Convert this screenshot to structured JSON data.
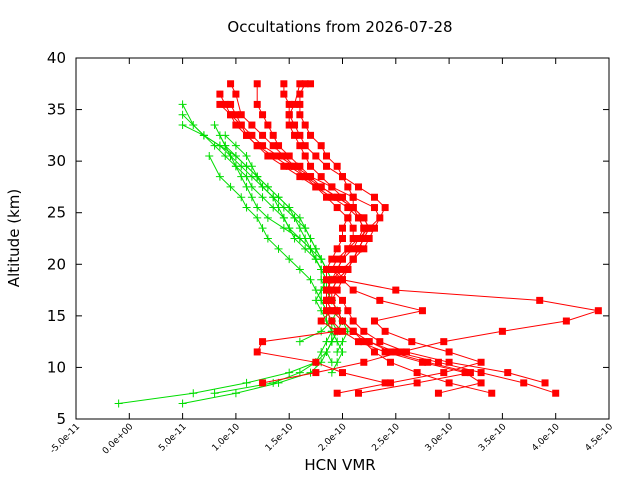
{
  "chart_data": {
    "type": "line",
    "title": "Occultations from 2026-07-28",
    "xlabel": "HCN VMR",
    "ylabel": "Altitude (km)",
    "xlim": [
      -5e-11,
      4.5e-10
    ],
    "ylim": [
      5,
      40
    ],
    "x_ticks": [
      -5e-11,
      0,
      5e-11,
      1e-10,
      1.5e-10,
      2e-10,
      2.5e-10,
      3e-10,
      3.5e-10,
      4e-10,
      4.5e-10
    ],
    "x_tick_labels": [
      "-5.0e-11",
      "0.0e+00",
      "5.0e-11",
      "1.0e-10",
      "1.5e-10",
      "2.0e-10",
      "2.5e-10",
      "3.0e-10",
      "3.5e-10",
      "4.0e-10",
      "4.5e-10"
    ],
    "y_ticks": [
      5,
      10,
      15,
      20,
      25,
      30,
      35,
      40
    ],
    "y_tick_labels": [
      "5",
      "10",
      "15",
      "20",
      "25",
      "30",
      "35",
      "40"
    ],
    "grid": false,
    "legend": "none",
    "colors": {
      "red_series": "#ff0000",
      "green_series": "#00dd00",
      "axis": "#000000"
    },
    "series": [
      {
        "marker": "square",
        "color": "#ff0000",
        "x": [
          3.9e-10,
          3.55e-10,
          3e-10,
          2.6e-10,
          2.35e-10,
          2.2e-10,
          2.1e-10,
          2.05e-10,
          2e-10,
          1.9e-10,
          1.85e-10,
          1.85e-10,
          1.9e-10,
          1.95e-10,
          2e-10,
          2e-10,
          2.05e-10,
          2.1e-10,
          2.1e-10,
          2.05e-10,
          2e-10,
          1.95e-10,
          1.85e-10,
          1.8e-10,
          1.7e-10,
          1.65e-10,
          1.6e-10,
          1.6e-10,
          1.6e-10,
          1.65e-10,
          1.7e-10
        ],
        "y": [
          8.5,
          9.5,
          10.5,
          11.5,
          12.5,
          13.5,
          14.5,
          15.5,
          16.5,
          17.5,
          18.5,
          19.5,
          20.5,
          21.5,
          22.5,
          23.5,
          24.5,
          25.5,
          26.5,
          27.5,
          28.5,
          29.5,
          30.5,
          31.5,
          32.5,
          33.5,
          34.5,
          35.5,
          36.5,
          37.5,
          37.5
        ]
      },
      {
        "marker": "square",
        "color": "#ff0000",
        "x": [
          4e-10,
          3.7e-10,
          3.3e-10,
          2.9e-10,
          2.5e-10,
          2.25e-10,
          2.1e-10,
          2e-10,
          1.95e-10,
          1.9e-10,
          1.95e-10,
          2e-10,
          2.05e-10,
          2.1e-10,
          2.15e-10,
          2.2e-10,
          2.2e-10,
          2.15e-10,
          2.1e-10,
          2e-10,
          1.9e-10,
          1.8e-10,
          1.7e-10,
          1.65e-10,
          1.6e-10,
          1.55e-10,
          1.5e-10,
          1.5e-10,
          1.55e-10,
          1.6e-10
        ],
        "y": [
          7.5,
          8.5,
          9.5,
          10.5,
          11.5,
          12.5,
          13.5,
          14.5,
          15.5,
          16.5,
          17.5,
          18.5,
          19.5,
          20.5,
          21.5,
          22.5,
          23.5,
          24.5,
          25.5,
          26.5,
          27.5,
          28.5,
          29.5,
          30.5,
          31.5,
          32.5,
          33.5,
          34.5,
          35.5,
          37.5
        ]
      },
      {
        "marker": "square",
        "color": "#ff0000",
        "x": [
          3.4e-10,
          3e-10,
          2.7e-10,
          2.45e-10,
          2.3e-10,
          2.2e-10,
          2.1e-10,
          2e-10,
          1.95e-10,
          1.9e-10,
          1.9e-10,
          1.95e-10,
          2.05e-10,
          2.1e-10,
          2.2e-10,
          2.25e-10,
          2.3e-10,
          2.4e-10,
          2.3e-10,
          2.15e-10,
          2e-10,
          1.85e-10,
          1.75e-10,
          1.65e-10,
          1.6e-10,
          1.55e-10,
          1.5e-10,
          1.5e-10,
          1.45e-10,
          1.45e-10
        ],
        "y": [
          7.5,
          8.5,
          9.5,
          10.5,
          11.5,
          12.5,
          13.5,
          14.5,
          15.5,
          16.5,
          17.5,
          18.5,
          19.5,
          20.5,
          21.5,
          22.5,
          23.5,
          25.5,
          26.5,
          27.5,
          28.5,
          29.5,
          30.5,
          31.5,
          32.5,
          33.5,
          34.5,
          35.5,
          36.5,
          37.5
        ]
      },
      {
        "marker": "square",
        "color": "#ff0000",
        "x": [
          2.9e-10,
          3.3e-10,
          3.15e-10,
          2.75e-10,
          2.4e-10,
          2.15e-10,
          2e-10,
          1.9e-10,
          1.85e-10,
          1.85e-10,
          1.9e-10,
          1.95e-10,
          2.05e-10,
          2.1e-10,
          2.15e-10,
          2.2e-10,
          2.25e-10,
          2.2e-10,
          2.1e-10,
          1.95e-10,
          1.8e-10,
          1.7e-10,
          1.6e-10,
          1.5e-10,
          1.4e-10,
          1.35e-10,
          1.3e-10,
          1.25e-10,
          1.2e-10,
          1.2e-10
        ],
        "y": [
          7.5,
          8.5,
          9.5,
          10.5,
          11.5,
          12.5,
          13.5,
          14.5,
          15.5,
          16.5,
          17.5,
          18.5,
          19.5,
          20.5,
          21.5,
          22.5,
          23.5,
          24.5,
          25.5,
          26.5,
          27.5,
          28.5,
          29.5,
          30.5,
          31.5,
          32.5,
          33.5,
          34.5,
          35.5,
          37.5
        ]
      },
      {
        "marker": "square",
        "color": "#ff0000",
        "x": [
          2.15e-10,
          2.7e-10,
          3.2e-10,
          2.8e-10,
          2.45e-10,
          2.25e-10,
          2.1e-10,
          2e-10,
          1.9e-10,
          1.85e-10,
          1.85e-10,
          1.9e-10,
          1.95e-10,
          2e-10,
          2.05e-10,
          2.1e-10,
          2.1e-10,
          2.05e-10,
          1.95e-10,
          1.85e-10,
          1.75e-10,
          1.65e-10,
          1.55e-10,
          1.45e-10,
          1.35e-10,
          1.25e-10,
          1.15e-10,
          1.05e-10,
          1e-10,
          9.5e-11
        ],
        "y": [
          7.5,
          8.5,
          9.5,
          10.5,
          11.5,
          12.5,
          13.5,
          14.5,
          15.5,
          16.5,
          17.5,
          18.5,
          19.5,
          20.5,
          21.5,
          22.5,
          23.5,
          24.5,
          25.5,
          26.5,
          27.5,
          28.5,
          29.5,
          30.5,
          31.5,
          32.5,
          33.5,
          34.5,
          36.5,
          37.5
        ]
      },
      {
        "marker": "square",
        "color": "#ff0000",
        "x": [
          1.25e-10,
          1.75e-10,
          2.2e-10,
          2.55e-10,
          2.95e-10,
          3.5e-10,
          4.1e-10,
          4.4e-10,
          3.85e-10,
          2.5e-10,
          2e-10,
          1.9e-10,
          1.95e-10,
          2.05e-10,
          2.15e-10,
          2.25e-10,
          2.35e-10,
          2.3e-10,
          2.1e-10,
          1.9e-10,
          1.7e-10,
          1.55e-10,
          1.4e-10,
          1.25e-10,
          1.15e-10,
          1.05e-10,
          9.5e-11,
          9e-11,
          8.5e-11
        ],
        "y": [
          8.5,
          9.5,
          10.5,
          11.5,
          12.5,
          13.5,
          14.5,
          15.5,
          16.5,
          17.5,
          18.5,
          19.5,
          20.5,
          21.5,
          22.5,
          23.5,
          24.5,
          25.5,
          26.5,
          27.5,
          28.5,
          29.5,
          30.5,
          31.5,
          32.5,
          33.5,
          34.5,
          35.5,
          36.5
        ]
      },
      {
        "marker": "square",
        "color": "#ff0000",
        "x": [
          1.95e-10,
          2.45e-10,
          2.95e-10,
          3.3e-10,
          3e-10,
          2.65e-10,
          2.4e-10,
          2.3e-10,
          2.75e-10,
          2.35e-10,
          2.1e-10,
          2e-10,
          1.95e-10,
          2e-10,
          2.1e-10,
          2.15e-10,
          2.2e-10,
          2.15e-10,
          2.05e-10,
          1.9e-10,
          1.75e-10,
          1.6e-10,
          1.45e-10,
          1.3e-10,
          1.2e-10,
          1.1e-10,
          1e-10,
          9.5e-11,
          8.5e-11
        ],
        "y": [
          7.5,
          8.5,
          9.5,
          10.5,
          11.5,
          12.5,
          13.5,
          14.5,
          15.5,
          16.5,
          17.5,
          18.5,
          19.5,
          20.5,
          21.5,
          22.5,
          23.5,
          24.5,
          25.5,
          26.5,
          27.5,
          28.5,
          29.5,
          30.5,
          31.5,
          32.5,
          33.5,
          34.5,
          35.5
        ]
      },
      {
        "marker": "square",
        "color": "#ff0000",
        "x": [
          2.4e-10,
          2e-10,
          1.75e-10,
          1.2e-10,
          1.25e-10,
          1.95e-10,
          1.8e-10,
          1.9e-10,
          1.85e-10,
          1.85e-10,
          1.9e-10,
          2e-10,
          2.1e-10,
          2.15e-10,
          2.2e-10,
          2.25e-10,
          2.2e-10,
          2.1e-10,
          1.95e-10,
          1.8e-10,
          1.65e-10,
          1.5e-10,
          1.35e-10,
          1.2e-10,
          1.1e-10,
          1.05e-10,
          1e-10,
          9.5e-11
        ],
        "y": [
          8.5,
          9.5,
          10.5,
          11.5,
          12.5,
          13.5,
          14.5,
          15.5,
          16.5,
          17.5,
          18.5,
          19.5,
          20.5,
          21.5,
          22.5,
          23.5,
          24.5,
          25.5,
          26.5,
          27.5,
          28.5,
          29.5,
          30.5,
          31.5,
          32.5,
          33.5,
          34.5,
          35.5
        ]
      },
      {
        "marker": "plus",
        "color": "#00dd00",
        "x": [
          -1e-11,
          6e-11,
          1.1e-10,
          1.5e-10,
          1.75e-10,
          1.8e-10,
          1.85e-10,
          1.9e-10,
          1.9e-10,
          1.85e-10,
          1.85e-10,
          1.85e-10,
          1.85e-10,
          1.85e-10,
          1.8e-10,
          1.75e-10,
          1.7e-10,
          1.65e-10,
          1.6e-10,
          1.5e-10,
          1.4e-10,
          1.3e-10,
          1.2e-10,
          1.1e-10,
          1e-10,
          8.5e-11,
          7e-11,
          5e-11
        ],
        "y": [
          6.5,
          7.5,
          8.5,
          9.5,
          10.5,
          11.5,
          12.5,
          13.5,
          14.5,
          15.5,
          16.5,
          17.5,
          18.5,
          19.5,
          20.5,
          21.5,
          22.5,
          23.5,
          24.5,
          25.5,
          26.5,
          27.5,
          28.5,
          29.5,
          30.5,
          31.5,
          32.5,
          33.5
        ]
      },
      {
        "marker": "plus",
        "color": "#00dd00",
        "x": [
          5e-11,
          1e-10,
          1.4e-10,
          1.7e-10,
          1.8e-10,
          1.85e-10,
          1.9e-10,
          1.95e-10,
          1.9e-10,
          1.85e-10,
          1.8e-10,
          1.8e-10,
          1.85e-10,
          1.85e-10,
          1.8e-10,
          1.7e-10,
          1.6e-10,
          1.5e-10,
          1.45e-10,
          1.4e-10,
          1.35e-10,
          1.25e-10,
          1.15e-10,
          1.05e-10,
          9.5e-11,
          8.5e-11,
          7e-11,
          5e-11
        ],
        "y": [
          6.5,
          7.5,
          8.5,
          9.5,
          10.5,
          11.5,
          12.5,
          13.5,
          14.5,
          15.5,
          16.5,
          17.5,
          18.5,
          19.5,
          20.5,
          21.5,
          22.5,
          23.5,
          24.5,
          25.5,
          26.5,
          27.5,
          28.5,
          29.5,
          30.5,
          31.5,
          32.5,
          34.5
        ]
      },
      {
        "marker": "plus",
        "color": "#00dd00",
        "x": [
          8e-11,
          1.35e-10,
          1.6e-10,
          1.75e-10,
          1.85e-10,
          1.9e-10,
          1.9e-10,
          1.85e-10,
          1.8e-10,
          1.75e-10,
          1.8e-10,
          1.85e-10,
          1.8e-10,
          1.75e-10,
          1.65e-10,
          1.55e-10,
          1.5e-10,
          1.45e-10,
          1.35e-10,
          1.25e-10,
          1.15e-10,
          1.1e-10,
          1e-10,
          9e-11,
          8e-11,
          7e-11,
          6e-11,
          5e-11
        ],
        "y": [
          7.5,
          8.5,
          9.5,
          10.5,
          11.5,
          12.5,
          13.5,
          14.5,
          15.5,
          16.5,
          17.5,
          18.5,
          19.5,
          20.5,
          21.5,
          22.5,
          23.5,
          24.5,
          25.5,
          26.5,
          27.5,
          28.5,
          29.5,
          30.5,
          31.5,
          32.5,
          33.5,
          35.5
        ]
      },
      {
        "marker": "plus",
        "color": "#00dd00",
        "x": [
          1.9e-10,
          1.85e-10,
          1.9e-10,
          1.95e-10,
          2e-10,
          1.95e-10,
          1.9e-10,
          1.85e-10,
          1.85e-10,
          1.8e-10,
          1.75e-10,
          1.7e-10,
          1.6e-10,
          1.45e-10,
          1.3e-10,
          1.2e-10,
          1.15e-10,
          1.1e-10,
          1.05e-10,
          1e-10,
          9.5e-11,
          9e-11,
          8.5e-11
        ],
        "y": [
          10.5,
          11.5,
          12.5,
          13.5,
          14.5,
          15.5,
          16.5,
          17.5,
          18.5,
          19.5,
          20.5,
          21.5,
          22.5,
          23.5,
          24.5,
          25.5,
          26.5,
          27.5,
          28.5,
          29.5,
          30.5,
          31.5,
          32.5
        ]
      },
      {
        "marker": "plus",
        "color": "#00dd00",
        "x": [
          1.6e-10,
          1.8e-10,
          1.9e-10,
          1.95e-10,
          1.9e-10,
          1.85e-10,
          1.9e-10,
          1.85e-10,
          1.8e-10,
          1.75e-10,
          1.7e-10,
          1.65e-10,
          1.55e-10,
          1.45e-10,
          1.35e-10,
          1.25e-10,
          1.2e-10,
          1.15e-10,
          1.1e-10,
          1e-10,
          9e-11
        ],
        "y": [
          12.5,
          13.5,
          14.5,
          15.5,
          16.5,
          17.5,
          18.5,
          19.5,
          20.5,
          21.5,
          22.5,
          23.5,
          24.5,
          25.5,
          26.5,
          27.5,
          28.5,
          29.5,
          30.5,
          31.5,
          32.5
        ]
      },
      {
        "marker": "plus",
        "color": "#00dd00",
        "x": [
          1.95e-10,
          2e-10,
          2.05e-10,
          2e-10,
          1.95e-10,
          1.9e-10,
          1.85e-10,
          1.8e-10,
          1.8e-10,
          1.75e-10,
          1.7e-10,
          1.65e-10,
          1.6e-10,
          1.55e-10,
          1.5e-10,
          1.4e-10,
          1.3e-10,
          1.2e-10,
          1.1e-10,
          1e-10,
          9e-11,
          8e-11
        ],
        "y": [
          11.5,
          12.5,
          13.5,
          14.5,
          15.5,
          16.5,
          17.5,
          18.5,
          19.5,
          20.5,
          21.5,
          22.5,
          23.5,
          24.5,
          25.5,
          26.5,
          27.5,
          28.5,
          29.5,
          30.5,
          31.5,
          33.5
        ]
      },
      {
        "marker": "plus",
        "color": "#00dd00",
        "x": [
          1.9e-10,
          1.95e-10,
          2e-10,
          1.95e-10,
          1.9e-10,
          1.85e-10,
          1.85e-10,
          1.8e-10,
          1.75e-10,
          1.7e-10,
          1.6e-10,
          1.5e-10,
          1.4e-10,
          1.3e-10,
          1.25e-10,
          1.2e-10,
          1.1e-10,
          1.05e-10,
          9.5e-11,
          8.5e-11,
          7.5e-11
        ],
        "y": [
          9.5,
          10.5,
          11.5,
          12.5,
          13.5,
          14.5,
          15.5,
          16.5,
          17.5,
          18.5,
          19.5,
          20.5,
          21.5,
          22.5,
          23.5,
          24.5,
          25.5,
          26.5,
          27.5,
          28.5,
          30.5
        ]
      }
    ]
  }
}
